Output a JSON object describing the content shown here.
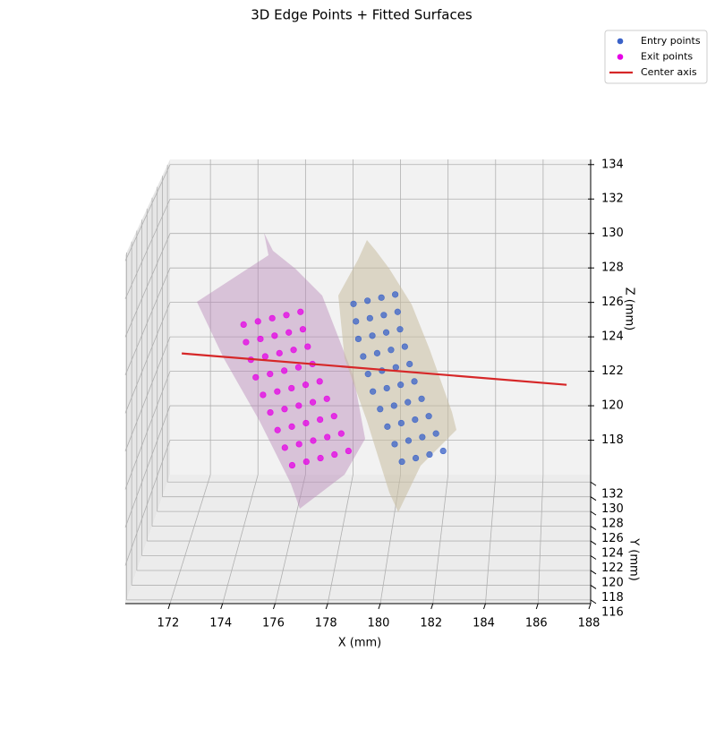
{
  "chart_data": {
    "type": "scatter3d",
    "title": "3D Edge Points + Fitted Surfaces",
    "xlabel": "X (mm)",
    "ylabel": "Y (mm)",
    "zlabel": "Z (mm)",
    "xlim": [
      170.3,
      188
    ],
    "ylim": [
      115.5,
      133
    ],
    "zlim": [
      116,
      134.3
    ],
    "xticks": [
      172,
      174,
      176,
      178,
      180,
      182,
      184,
      186,
      188
    ],
    "yticks": [
      116,
      118,
      120,
      122,
      124,
      126,
      128,
      130,
      132
    ],
    "zticks": [
      118,
      120,
      122,
      124,
      126,
      128,
      130,
      132,
      134
    ],
    "grid": true,
    "legend": "upper right",
    "series": [
      {
        "name": "Entry points",
        "type": "scatter",
        "color": "#3a62c8",
        "x": [
          178.2,
          178.75,
          179.3,
          179.85,
          178.3,
          178.85,
          179.4,
          179.95,
          178.4,
          178.95,
          179.5,
          180.05,
          178.6,
          179.15,
          179.7,
          180.25,
          178.8,
          179.35,
          179.9,
          180.45,
          179.0,
          179.55,
          180.1,
          180.65,
          179.3,
          179.85,
          180.4,
          180.95,
          179.6,
          180.15,
          180.7,
          181.25,
          179.9,
          180.45,
          181.0,
          181.55,
          180.2,
          180.75,
          181.3,
          181.85
        ],
        "y": [
          130,
          130.5,
          131,
          131.5,
          130,
          130.5,
          131,
          131.5,
          130,
          130.5,
          131,
          131.5,
          130,
          130.5,
          131,
          131.5,
          130,
          130.5,
          131,
          131.5,
          130,
          130.5,
          131,
          131.5,
          130,
          130.5,
          131,
          131.5,
          130,
          130.5,
          131,
          131.5,
          130,
          130.5,
          131,
          131.5,
          130,
          130.5,
          131,
          131.5
        ],
        "z": [
          127,
          127,
          127,
          127,
          126,
          126,
          126,
          126,
          125,
          125,
          125,
          125,
          124,
          124,
          124,
          124,
          123,
          123,
          123,
          123,
          122,
          122,
          122,
          122,
          121,
          121,
          121,
          121,
          120,
          120,
          120,
          120,
          119,
          119,
          119,
          119,
          118,
          118,
          118,
          118
        ]
      },
      {
        "name": "Exit points",
        "type": "scatter",
        "color": "#e600e6",
        "x": [
          173.7,
          174.25,
          174.8,
          175.35,
          175.9,
          173.8,
          174.35,
          174.9,
          175.45,
          176.0,
          174.0,
          174.55,
          175.1,
          175.65,
          176.2,
          174.2,
          174.75,
          175.3,
          175.85,
          176.4,
          174.5,
          175.05,
          175.6,
          176.15,
          176.7,
          174.8,
          175.35,
          175.9,
          176.45,
          177.0,
          175.1,
          175.65,
          176.2,
          176.75,
          177.3,
          175.4,
          175.95,
          176.5,
          177.05,
          177.6,
          175.7,
          176.25,
          176.8,
          177.35,
          177.9
        ],
        "y": [
          129.5,
          130,
          130.5,
          131,
          131.5,
          129.5,
          130,
          130.5,
          131,
          131.5,
          129.5,
          130,
          130.5,
          131,
          131.5,
          129.5,
          130,
          130.5,
          131,
          131.5,
          129.5,
          130,
          130.5,
          131,
          131.5,
          129.5,
          130,
          130.5,
          131,
          131.5,
          129.5,
          130,
          130.5,
          131,
          131.5,
          129.5,
          130,
          130.5,
          131,
          131.5,
          129.5,
          130,
          130.5,
          131,
          131.5
        ],
        "z": [
          126,
          126,
          126,
          126,
          126,
          125,
          125,
          125,
          125,
          125,
          124,
          124,
          124,
          124,
          124,
          123,
          123,
          123,
          123,
          123,
          122,
          122,
          122,
          122,
          122,
          121,
          121,
          121,
          121,
          121,
          120,
          120,
          120,
          120,
          120,
          119,
          119,
          119,
          119,
          119,
          118,
          118,
          118,
          118,
          118
        ]
      },
      {
        "name": "Center axis",
        "type": "line",
        "color": "#d62728",
        "x": [
          171.0,
          187.0
        ],
        "y": [
          131,
          131
        ],
        "z": [
          123.8,
          122
        ]
      }
    ]
  }
}
